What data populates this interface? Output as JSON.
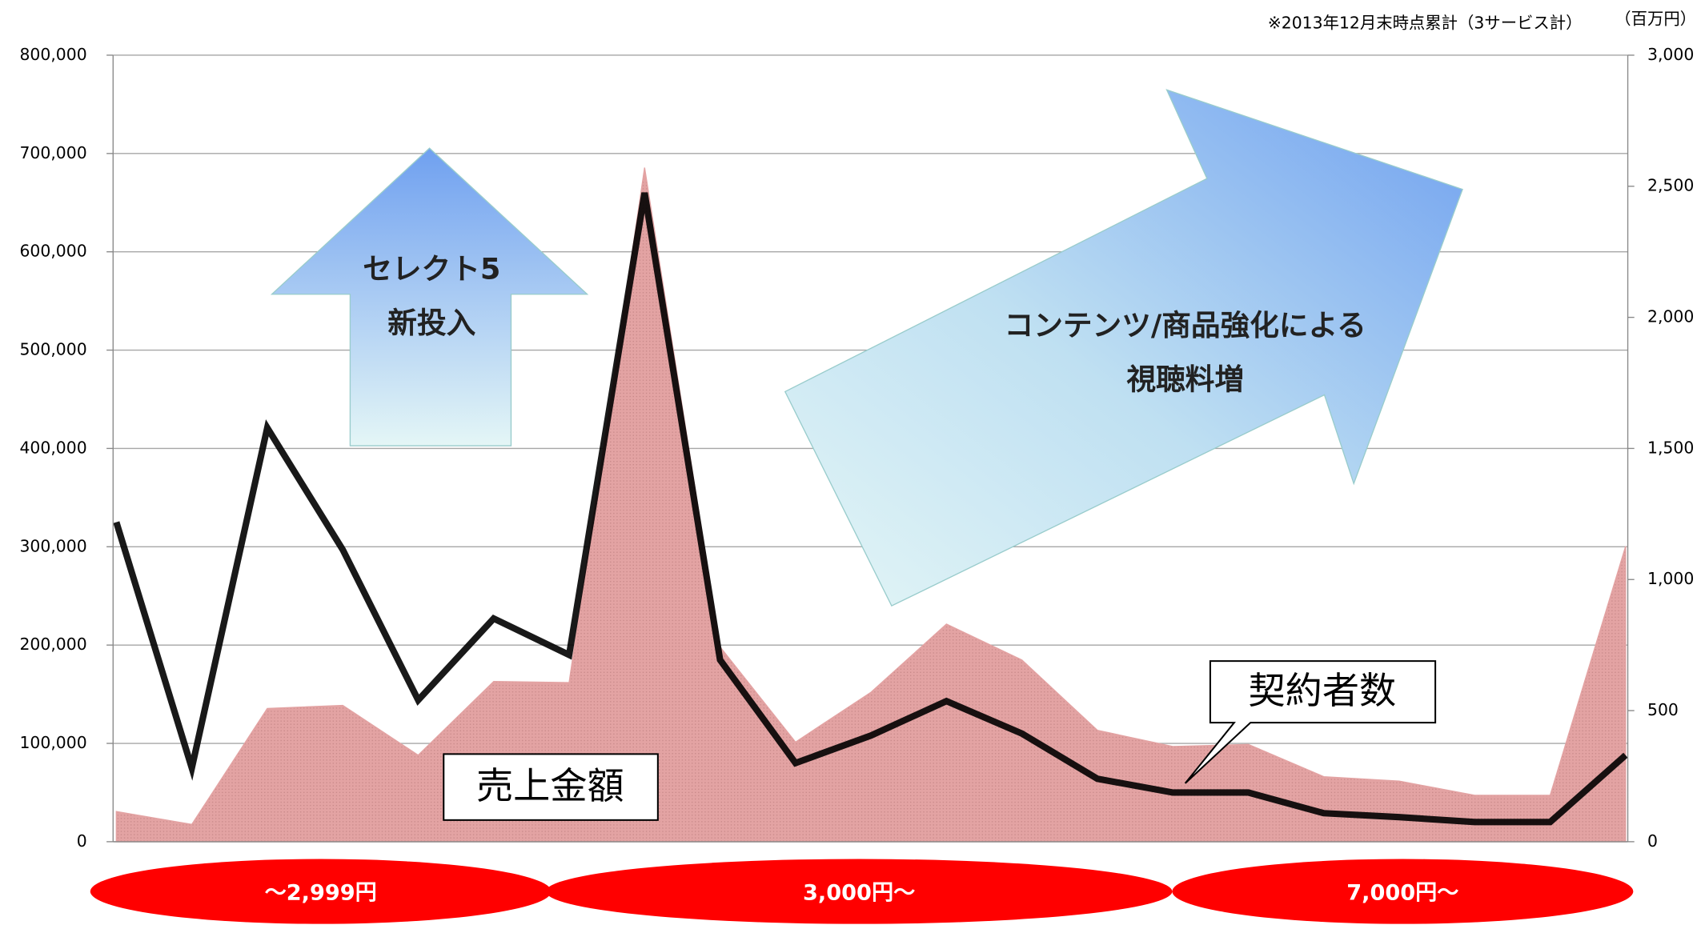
{
  "chart_data": {
    "type": "line-area",
    "note": "※2013年12月末時点累計（3サービス計）",
    "y2_label": "（百万円）",
    "categories": [
      null,
      null,
      null,
      null,
      null,
      null,
      null,
      null,
      null,
      null,
      null,
      null,
      null,
      null,
      null,
      null,
      null,
      null,
      null,
      null,
      null
    ],
    "series": [
      {
        "name": "売上金額",
        "type": "area",
        "axis": "y2",
        "color": "#e3a3a3",
        "values": [
          115,
          66,
          508,
          520,
          330,
          611,
          607,
          2571,
          743,
          380,
          570,
          830,
          693,
          425,
          363,
          371,
          248,
          231,
          177,
          177,
          1127
        ]
      },
      {
        "name": "契約者数",
        "type": "line",
        "axis": "y",
        "color": "#000000",
        "values": [
          325000,
          75000,
          421000,
          297000,
          144000,
          227000,
          190000,
          660000,
          185000,
          80000,
          108000,
          143000,
          110000,
          64000,
          50000,
          50000,
          29000,
          25000,
          20000,
          20000,
          88000
        ]
      }
    ],
    "ylim": [
      0,
      800000
    ],
    "yticks": [
      0,
      {
        "value": 100000,
        "label": "100,000"
      },
      {
        "value": 200000,
        "label": "200,000"
      },
      {
        "value": 300000,
        "label": "300,000"
      },
      {
        "value": 400000,
        "label": "400,000"
      },
      {
        "value": 500000,
        "label": "500,000"
      },
      {
        "value": 600000,
        "label": "600,000"
      },
      {
        "value": 700000,
        "label": "700,000"
      },
      {
        "value": 800000,
        "label": "800,000"
      }
    ],
    "y2lim": [
      0,
      3000
    ],
    "y2ticks": [
      0,
      500,
      {
        "value": 1000,
        "label": "1,000"
      },
      {
        "value": 1500,
        "label": "1,500"
      },
      {
        "value": 2000,
        "label": "2,000"
      },
      {
        "value": 2500,
        "label": "2,500"
      },
      {
        "value": 3000,
        "label": "3,000"
      }
    ],
    "grid": true,
    "annotations": {
      "arrow_up": [
        "セレクト5",
        "新投入"
      ],
      "arrow_right": [
        "コンテンツ/商品強化による",
        "視聴料増"
      ],
      "price_bands": [
        "～2,999円",
        "3,000円～",
        "7,000円～"
      ]
    }
  }
}
